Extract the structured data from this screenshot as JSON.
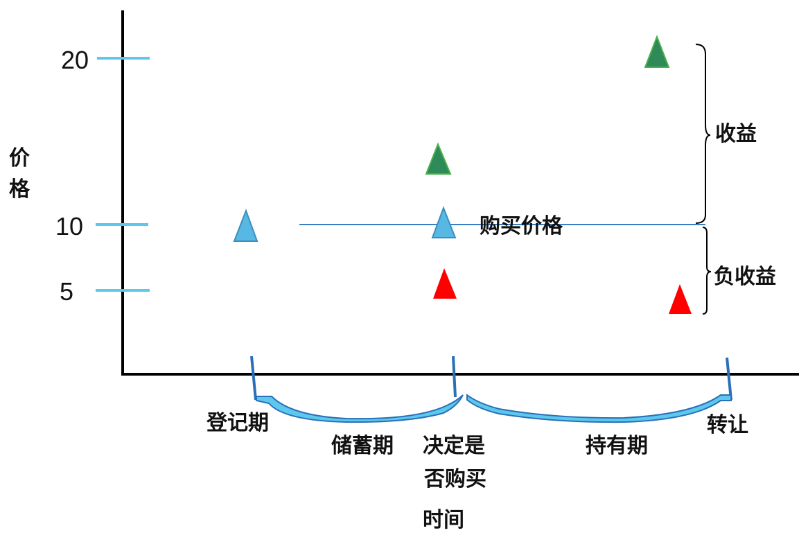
{
  "axis": {
    "y_label_char_1": "价",
    "y_label_char_2": "格",
    "x_label": "时间"
  },
  "y_ticks": [
    {
      "value": 20,
      "label": "20"
    },
    {
      "value": 10,
      "label": "10"
    },
    {
      "value": 5,
      "label": "5"
    }
  ],
  "reference_line": {
    "label": "购买价格",
    "value": 10
  },
  "brackets": {
    "gain": "收益",
    "loss": "负收益"
  },
  "periods": {
    "registration": "登记期",
    "saving": "储蓄期",
    "decision_line1": "决定是",
    "decision_line2": "否购买",
    "holding": "持有期",
    "transfer": "转让"
  },
  "colors": {
    "axis": "#000000",
    "tick": "#5bc8ec",
    "blue_triangle": "#56b8e3",
    "green_triangle": "#2e8b57",
    "red_triangle": "#ff0000",
    "reference_line": "#3a7fc0",
    "brace": "#5bc8ec"
  },
  "markers": [
    {
      "name": "blue",
      "color": "blue",
      "price": 10,
      "stage": "registration"
    },
    {
      "name": "blue",
      "color": "blue",
      "price": 10,
      "stage": "decision"
    },
    {
      "name": "green",
      "color": "green",
      "price": 14,
      "stage": "decision"
    },
    {
      "name": "red",
      "color": "red",
      "price": 5,
      "stage": "decision"
    },
    {
      "name": "green",
      "color": "green",
      "price": 20,
      "stage": "transfer"
    },
    {
      "name": "red",
      "color": "red",
      "price": 4,
      "stage": "transfer"
    }
  ]
}
